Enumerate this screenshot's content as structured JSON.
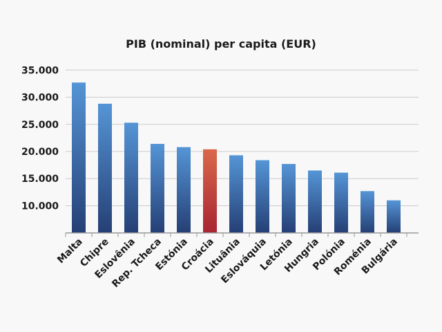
{
  "chart_data": {
    "type": "bar",
    "title": "PIB (nominal) per capita (EUR)",
    "xlabel": "",
    "ylabel": "",
    "categories": [
      "Malta",
      "Chipre",
      "Eslovênia",
      "Rep. Tcheca",
      "Estónia",
      "Croácia",
      "Lituânia",
      "Eslováquia",
      "Letónia",
      "Hungria",
      "Polónia",
      "Roménia",
      "Bulgária"
    ],
    "values": [
      32700,
      28800,
      25300,
      21400,
      20800,
      20400,
      19300,
      18400,
      17700,
      16500,
      16100,
      12700,
      11000
    ],
    "highlight_index": 5,
    "ylim": [
      5000,
      35000
    ],
    "yticks": [
      10000,
      15000,
      20000,
      25000,
      30000,
      35000
    ],
    "ytick_labels": [
      "10.000",
      "15.000",
      "20.000",
      "25.000",
      "30.000",
      "35.000"
    ],
    "grid": true,
    "legend": "none",
    "colors": {
      "bar_top": "#5595d6",
      "bar_bottom": "#253f75",
      "highlight_top": "#d9694a",
      "highlight_bottom": "#a82432",
      "grid": "#cccccc",
      "background": "#f8f8f8"
    }
  }
}
